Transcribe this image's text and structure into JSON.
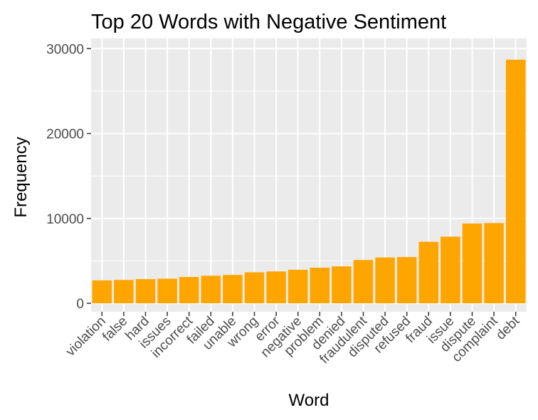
{
  "chart_data": {
    "type": "bar",
    "title": "Top 20 Words with Negative Sentiment",
    "xlabel": "Word",
    "ylabel": "Frequency",
    "categories": [
      "violation",
      "false",
      "hard",
      "issues",
      "incorrect",
      "failed",
      "unable",
      "wrong",
      "error",
      "negative",
      "problem",
      "denied",
      "fraudulent",
      "disputed",
      "refused",
      "fraud",
      "issue",
      "dispute",
      "complaint",
      "debt"
    ],
    "values": [
      2700,
      2750,
      2850,
      2900,
      3100,
      3250,
      3350,
      3650,
      3750,
      3950,
      4200,
      4350,
      5100,
      5400,
      5450,
      7250,
      7850,
      9400,
      9450,
      28700
    ],
    "yticks": [
      0,
      10000,
      20000,
      30000
    ],
    "ylim": [
      -1000,
      31200
    ],
    "grid": true,
    "bar_color": "#FFA500",
    "panel_color": "#EBEBEB",
    "grid_color": "#FFFFFF"
  }
}
